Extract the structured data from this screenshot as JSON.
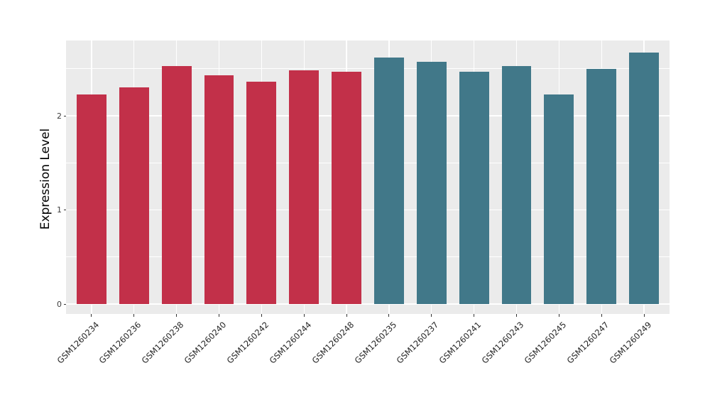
{
  "figure": {
    "background": "#FFFFFF"
  },
  "chart_data": {
    "type": "bar",
    "title": "",
    "xlabel": "",
    "ylabel": "Expression Level",
    "categories": [
      "GSM1260234",
      "GSM1260236",
      "GSM1260238",
      "GSM1260240",
      "GSM1260242",
      "GSM1260244",
      "GSM1260248",
      "GSM1260235",
      "GSM1260237",
      "GSM1260241",
      "GSM1260243",
      "GSM1260245",
      "GSM1260247",
      "GSM1260249"
    ],
    "values": [
      2.23,
      2.3,
      2.53,
      2.43,
      2.36,
      2.48,
      2.47,
      2.62,
      2.57,
      2.47,
      2.53,
      2.23,
      2.5,
      2.67
    ],
    "groups": [
      "group1",
      "group1",
      "group1",
      "group1",
      "group1",
      "group1",
      "group1",
      "group2",
      "group2",
      "group2",
      "group2",
      "group2",
      "group2",
      "group2"
    ],
    "group_colors": {
      "group1": "#C23049",
      "group2": "#417889"
    },
    "yticks": [
      0,
      1,
      2
    ],
    "ytick_labels": [
      "0",
      "1",
      "2"
    ],
    "minor_yticks": [
      0.5,
      1.5,
      2.5
    ],
    "ylim": [
      0,
      2.8
    ],
    "grid": true,
    "legend_position": "none",
    "panel_background": "#EBEBEB",
    "gridline_color": "#FFFFFF",
    "axis_text_color": "#262626",
    "tick_color": "#333333"
  }
}
